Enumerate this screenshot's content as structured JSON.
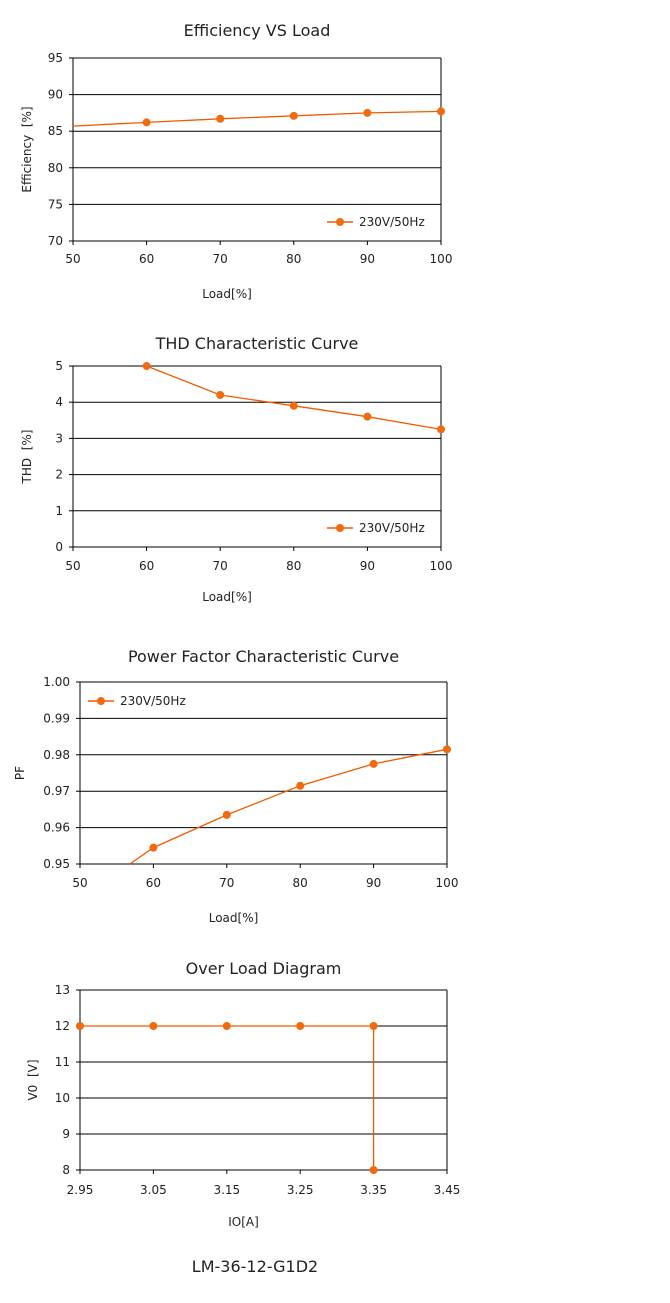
{
  "colors": {
    "series": "#f05a00",
    "marker": "#f26a0f",
    "grid": "#000000"
  },
  "footer": "LM-36-12-G1D2",
  "chart_data": [
    {
      "type": "line",
      "title": "Efficiency VS Load",
      "xlabel": "Load[%]",
      "ylabel": "Efficiency  [%]",
      "xlim": [
        50,
        100
      ],
      "ylim": [
        70,
        95
      ],
      "xticks": [
        50,
        60,
        70,
        80,
        90,
        100
      ],
      "yticks": [
        70,
        75,
        80,
        85,
        90,
        95
      ],
      "ytick_labels": [
        "70",
        "75",
        "80",
        "85",
        "90",
        "95"
      ],
      "legend_position": "bottom-right",
      "series": [
        {
          "name": "230V/50Hz",
          "x": [
            50,
            60,
            70,
            80,
            90,
            100
          ],
          "y": [
            85.7,
            86.2,
            86.7,
            87.1,
            87.5,
            87.7
          ],
          "markers": [
            false,
            true,
            true,
            true,
            true,
            true
          ]
        }
      ]
    },
    {
      "type": "line",
      "title": "THD Characteristic Curve",
      "xlabel": "Load[%]",
      "ylabel": "THD  [%]",
      "xlim": [
        50,
        100
      ],
      "ylim": [
        0,
        5
      ],
      "xticks": [
        50,
        60,
        70,
        80,
        90,
        100
      ],
      "yticks": [
        0,
        1,
        2,
        3,
        4,
        5
      ],
      "ytick_labels": [
        "0",
        "1",
        "2",
        "3",
        "4",
        "5"
      ],
      "legend_position": "bottom-right",
      "series": [
        {
          "name": "230V/50Hz",
          "x": [
            60,
            70,
            80,
            90,
            100
          ],
          "y": [
            5.0,
            4.2,
            3.9,
            3.6,
            3.25
          ],
          "markers": [
            true,
            true,
            true,
            true,
            true
          ]
        }
      ]
    },
    {
      "type": "line",
      "title": "Power Factor Characteristic Curve",
      "xlabel": "Load[%]",
      "ylabel": "PF",
      "xlim": [
        50,
        100
      ],
      "ylim": [
        0.95,
        1.0
      ],
      "xticks": [
        50,
        60,
        70,
        80,
        90,
        100
      ],
      "yticks": [
        0.95,
        0.96,
        0.97,
        0.98,
        0.99,
        1.0
      ],
      "ytick_labels": [
        "0.95",
        "0.96",
        "0.97",
        "0.98",
        "0.99",
        "1.00"
      ],
      "legend_position": "top-left",
      "series": [
        {
          "name": "230V/50Hz",
          "x": [
            56.8,
            60,
            70,
            80,
            90,
            100
          ],
          "y": [
            0.95,
            0.9545,
            0.9635,
            0.9715,
            0.9775,
            0.9815
          ],
          "markers": [
            false,
            true,
            true,
            true,
            true,
            true
          ]
        }
      ]
    },
    {
      "type": "line",
      "title": "Over Load Diagram",
      "xlabel": "IO[A]",
      "ylabel": "V0  [V]",
      "xlim": [
        2.95,
        3.45
      ],
      "ylim": [
        8,
        13
      ],
      "xticks": [
        2.95,
        3.05,
        3.15,
        3.25,
        3.35,
        3.45
      ],
      "xtick_labels": [
        "2.95",
        "3.05",
        "3.15",
        "3.25",
        "3.35",
        "3.45"
      ],
      "yticks": [
        8,
        9,
        10,
        11,
        12,
        13
      ],
      "ytick_labels": [
        "8",
        "9",
        "10",
        "11",
        "12",
        "13"
      ],
      "series": [
        {
          "name": "",
          "x": [
            2.95,
            3.05,
            3.15,
            3.25,
            3.35,
            3.35
          ],
          "y": [
            12,
            12,
            12,
            12,
            12,
            8
          ],
          "markers": [
            true,
            true,
            true,
            true,
            true,
            true
          ]
        }
      ]
    }
  ]
}
